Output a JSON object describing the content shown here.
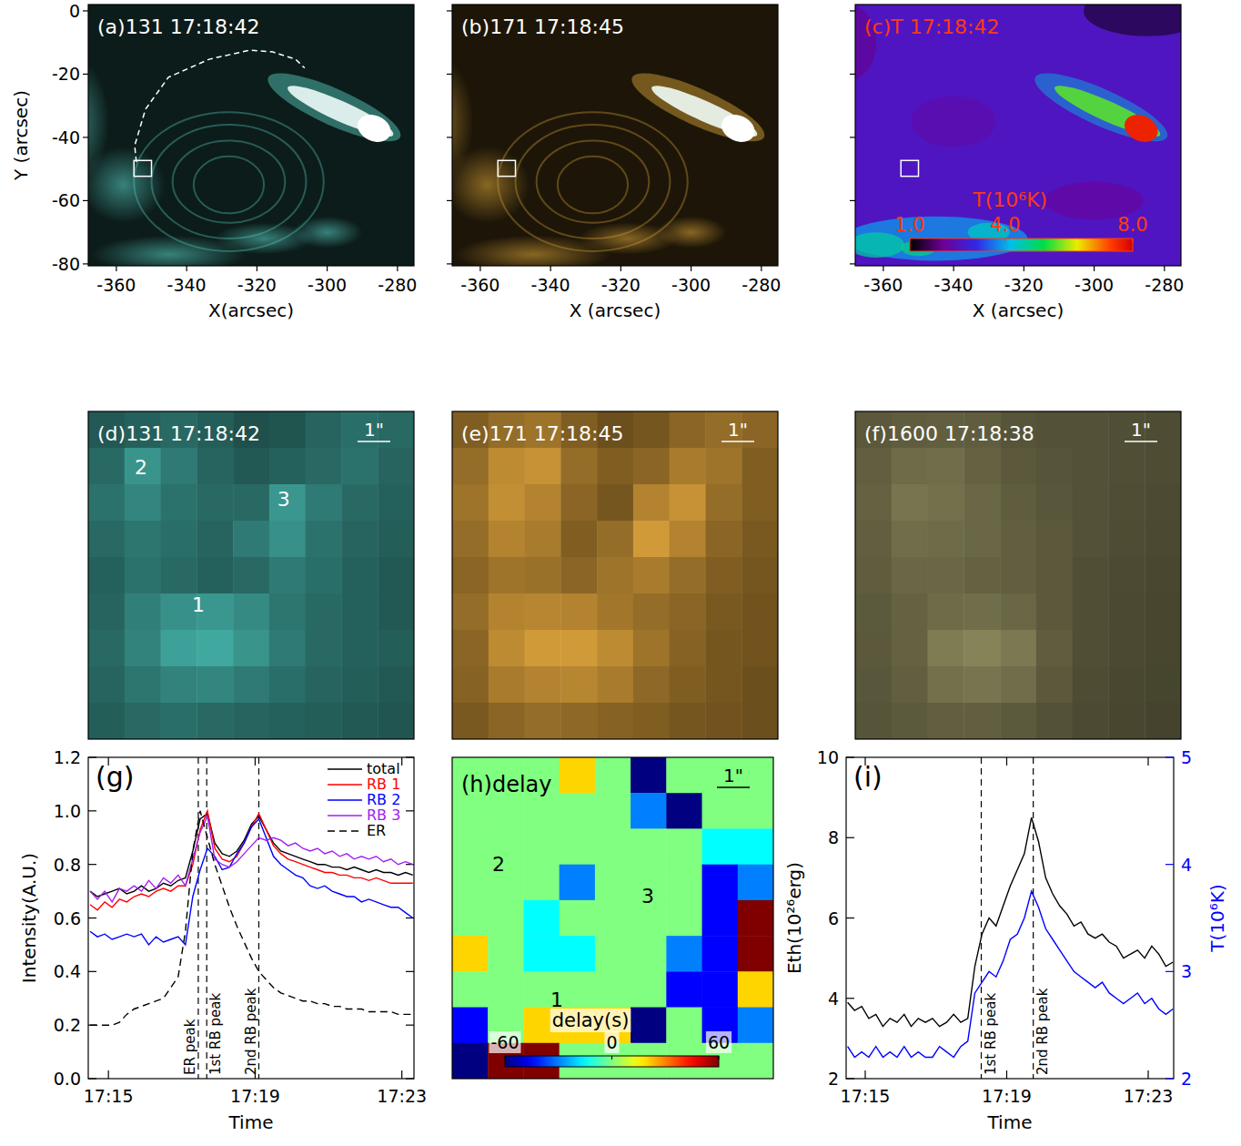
{
  "chart_data": [
    {
      "type": "image",
      "title": "(a)131 17:18:42",
      "color": "#5cd4c8",
      "xlim": [
        -368,
        -275.3
      ],
      "ylim": [
        -80.6,
        2
      ],
      "xticks": [
        -360,
        -340,
        -320,
        -300,
        -280
      ],
      "yticks": [
        0,
        -20,
        -40,
        -60,
        -80
      ],
      "xlabel": "X(arcsec)",
      "ylabel": "Y (arcsec)",
      "box": {
        "x": [
          -355,
          -350
        ],
        "y": [
          -52.3,
          -47.3
        ]
      },
      "path": {
        "x": [
          -354.3,
          -354.8,
          -351.7,
          -345.2,
          -333.6,
          -321.9,
          -315.5,
          -309,
          -306.4
        ],
        "y": [
          -47.8,
          -42.6,
          -31.1,
          -21,
          -15.3,
          -12.4,
          -13,
          -15.3,
          -18.1
        ]
      }
    },
    {
      "type": "image",
      "title": "(b)171 17:18:45",
      "color": "#e0a83a",
      "xlim": [
        -368,
        -275.3
      ],
      "ylim": [
        -80.6,
        2
      ],
      "xticks": [
        -360,
        -340,
        -320,
        -300,
        -280
      ],
      "yticks": [
        0,
        -20,
        -40,
        -60,
        -80
      ],
      "tick_labels": "x",
      "xlabel": "X (arcsec)",
      "box": {
        "x": [
          -355,
          -350
        ],
        "y": [
          -52.3,
          -47.3
        ]
      }
    },
    {
      "type": "image",
      "title": "(c)T 17:18:42",
      "xlim": [
        -368,
        -275.3
      ],
      "ylim": [
        -80.6,
        2
      ],
      "xticks": [
        -360,
        -340,
        -320,
        -300,
        -280
      ],
      "yticks": [
        0,
        -20,
        -40,
        -60,
        -80
      ],
      "tick_labels": "x",
      "xlabel": "X (arcsec)",
      "box": {
        "x": [
          -355,
          -350
        ],
        "y": [
          -52.3,
          -47.3
        ]
      },
      "colorbar": {
        "title": "T(10⁶K)",
        "range": [
          1,
          8
        ],
        "ticks": [
          {
            "value": 1,
            "label": "1.0"
          },
          {
            "value": 4,
            "label": "4.0"
          },
          {
            "value": 8,
            "label": "8.0"
          }
        ]
      }
    },
    {
      "type": "heatmap",
      "title": "(d)131 17:18:42",
      "color": "#4cc6bc",
      "tick_labels": false,
      "scale_label": "1\"",
      "cells": [
        [
          0.35,
          0.4,
          0.45,
          0.38,
          0.3,
          0.32,
          0.42,
          0.48,
          0.45
        ],
        [
          0.45,
          0.7,
          0.55,
          0.42,
          0.35,
          0.4,
          0.45,
          0.5,
          0.42
        ],
        [
          0.5,
          0.62,
          0.5,
          0.45,
          0.45,
          0.72,
          0.55,
          0.45,
          0.4
        ],
        [
          0.45,
          0.52,
          0.48,
          0.42,
          0.55,
          0.68,
          0.5,
          0.42,
          0.38
        ],
        [
          0.4,
          0.5,
          0.45,
          0.4,
          0.45,
          0.55,
          0.48,
          0.4,
          0.35
        ],
        [
          0.42,
          0.58,
          0.68,
          0.72,
          0.65,
          0.52,
          0.45,
          0.4,
          0.35
        ],
        [
          0.45,
          0.6,
          0.78,
          0.82,
          0.7,
          0.55,
          0.45,
          0.4,
          0.38
        ],
        [
          0.42,
          0.52,
          0.6,
          0.62,
          0.55,
          0.48,
          0.42,
          0.38,
          0.35
        ],
        [
          0.38,
          0.45,
          0.48,
          0.45,
          0.42,
          0.4,
          0.38,
          0.35,
          0.33
        ]
      ],
      "labels": [
        {
          "text": "2",
          "col": 1.46,
          "row": 1.53
        },
        {
          "text": "3",
          "col": 5.4,
          "row": 2.4
        },
        {
          "text": "1",
          "col": 3.04,
          "row": 5.3
        }
      ]
    },
    {
      "type": "heatmap",
      "title": "(e)171 17:18:45",
      "color": "#f0b040",
      "tick_labels": false,
      "scale_label": "1\"",
      "cells": [
        [
          0.45,
          0.55,
          0.6,
          0.45,
          0.35,
          0.4,
          0.5,
          0.55,
          0.5
        ],
        [
          0.55,
          0.75,
          0.8,
          0.55,
          0.45,
          0.5,
          0.65,
          0.6,
          0.45
        ],
        [
          0.6,
          0.78,
          0.7,
          0.5,
          0.4,
          0.7,
          0.8,
          0.55,
          0.45
        ],
        [
          0.55,
          0.7,
          0.65,
          0.45,
          0.55,
          0.85,
          0.7,
          0.5,
          0.42
        ],
        [
          0.5,
          0.6,
          0.58,
          0.5,
          0.6,
          0.65,
          0.55,
          0.45,
          0.4
        ],
        [
          0.55,
          0.7,
          0.72,
          0.7,
          0.62,
          0.55,
          0.5,
          0.42,
          0.38
        ],
        [
          0.5,
          0.75,
          0.85,
          0.85,
          0.75,
          0.6,
          0.48,
          0.4,
          0.38
        ],
        [
          0.48,
          0.65,
          0.7,
          0.72,
          0.65,
          0.52,
          0.45,
          0.4,
          0.35
        ],
        [
          0.42,
          0.5,
          0.55,
          0.52,
          0.48,
          0.45,
          0.4,
          0.38,
          0.35
        ]
      ]
    },
    {
      "type": "heatmap",
      "title": "(f)1600 17:18:38",
      "color": "#aaa670",
      "tick_labels": false,
      "scale_label": "1\"",
      "cells": [
        [
          0.45,
          0.48,
          0.5,
          0.48,
          0.42,
          0.4,
          0.4,
          0.38,
          0.36
        ],
        [
          0.5,
          0.58,
          0.6,
          0.52,
          0.45,
          0.42,
          0.4,
          0.38,
          0.36
        ],
        [
          0.52,
          0.65,
          0.62,
          0.55,
          0.48,
          0.44,
          0.4,
          0.37,
          0.35
        ],
        [
          0.5,
          0.6,
          0.58,
          0.55,
          0.5,
          0.45,
          0.4,
          0.36,
          0.34
        ],
        [
          0.48,
          0.55,
          0.55,
          0.52,
          0.5,
          0.45,
          0.38,
          0.35,
          0.33
        ],
        [
          0.46,
          0.52,
          0.58,
          0.6,
          0.55,
          0.45,
          0.38,
          0.34,
          0.32
        ],
        [
          0.45,
          0.52,
          0.7,
          0.75,
          0.68,
          0.48,
          0.38,
          0.34,
          0.32
        ],
        [
          0.44,
          0.5,
          0.62,
          0.65,
          0.6,
          0.45,
          0.36,
          0.33,
          0.31
        ],
        [
          0.42,
          0.46,
          0.5,
          0.5,
          0.46,
          0.4,
          0.35,
          0.32,
          0.3
        ]
      ]
    },
    {
      "type": "line",
      "title": "(g)",
      "xlabel": "Time",
      "ylabel": "Intensity(A.U.)",
      "legend": "upper right",
      "xlim": [
        14.45,
        23.33
      ],
      "ylim": [
        0,
        1.2
      ],
      "xticks": [
        {
          "value": 15,
          "label": "17:15"
        },
        {
          "value": 19,
          "label": "17:19"
        },
        {
          "value": 23,
          "label": "17:23"
        }
      ],
      "yticks": [
        {
          "value": 0,
          "label": "0.0"
        },
        {
          "value": 0.2,
          "label": "0.2"
        },
        {
          "value": 0.4,
          "label": "0.4"
        },
        {
          "value": 0.6,
          "label": "0.6"
        },
        {
          "value": 0.8,
          "label": "0.8"
        },
        {
          "value": 1.0,
          "label": "1.0"
        },
        {
          "value": 1.2,
          "label": "1.2"
        }
      ],
      "x": [
        14.5,
        14.7,
        14.9,
        15.1,
        15.3,
        15.5,
        15.7,
        15.9,
        16.1,
        16.3,
        16.5,
        16.7,
        16.9,
        17.1,
        17.3,
        17.5,
        17.7,
        17.9,
        18.1,
        18.3,
        18.5,
        18.7,
        18.9,
        19.1,
        19.3,
        19.5,
        19.7,
        19.9,
        20.1,
        20.3,
        20.5,
        20.7,
        20.9,
        21.1,
        21.3,
        21.5,
        21.7,
        21.9,
        22.1,
        22.3,
        22.5,
        22.7,
        22.9,
        23.1,
        23.3
      ],
      "series": [
        {
          "name": "total",
          "color": "#000000",
          "values": [
            0.7,
            0.68,
            0.69,
            0.7,
            0.71,
            0.69,
            0.7,
            0.72,
            0.7,
            0.71,
            0.73,
            0.72,
            0.74,
            0.75,
            0.85,
            0.97,
            0.99,
            0.88,
            0.84,
            0.83,
            0.85,
            0.89,
            0.95,
            0.98,
            0.93,
            0.88,
            0.85,
            0.84,
            0.83,
            0.82,
            0.81,
            0.8,
            0.8,
            0.79,
            0.79,
            0.78,
            0.79,
            0.78,
            0.77,
            0.78,
            0.77,
            0.77,
            0.76,
            0.77,
            0.76
          ]
        },
        {
          "name": "RB 1",
          "color": "#ff0000",
          "values": [
            0.65,
            0.63,
            0.66,
            0.64,
            0.67,
            0.66,
            0.68,
            0.69,
            0.68,
            0.7,
            0.71,
            0.7,
            0.72,
            0.72,
            0.8,
            0.93,
            1.0,
            0.86,
            0.82,
            0.81,
            0.83,
            0.88,
            0.94,
            0.99,
            0.93,
            0.87,
            0.84,
            0.82,
            0.81,
            0.8,
            0.79,
            0.78,
            0.77,
            0.77,
            0.76,
            0.76,
            0.75,
            0.75,
            0.74,
            0.75,
            0.74,
            0.73,
            0.73,
            0.73,
            0.73
          ]
        },
        {
          "name": "RB 2",
          "color": "#0000ff",
          "values": [
            0.55,
            0.53,
            0.54,
            0.52,
            0.53,
            0.54,
            0.53,
            0.54,
            0.5,
            0.53,
            0.51,
            0.52,
            0.53,
            0.5,
            0.68,
            0.78,
            0.86,
            0.83,
            0.78,
            0.79,
            0.84,
            0.88,
            0.94,
            0.97,
            0.9,
            0.83,
            0.8,
            0.78,
            0.76,
            0.75,
            0.72,
            0.71,
            0.72,
            0.7,
            0.69,
            0.68,
            0.68,
            0.66,
            0.67,
            0.66,
            0.65,
            0.64,
            0.64,
            0.62,
            0.6
          ]
        },
        {
          "name": "RB 3",
          "color": "#a020f0",
          "values": [
            0.7,
            0.67,
            0.7,
            0.66,
            0.71,
            0.7,
            0.72,
            0.7,
            0.74,
            0.71,
            0.75,
            0.73,
            0.76,
            0.72,
            0.82,
            0.92,
            0.98,
            0.82,
            0.8,
            0.79,
            0.81,
            0.84,
            0.87,
            0.9,
            0.89,
            0.9,
            0.89,
            0.87,
            0.88,
            0.86,
            0.85,
            0.86,
            0.84,
            0.85,
            0.83,
            0.84,
            0.82,
            0.83,
            0.82,
            0.83,
            0.81,
            0.82,
            0.8,
            0.81,
            0.8
          ]
        },
        {
          "name": "ER",
          "color": "#000000",
          "line_style": "dashed",
          "values": [
            0.2,
            0.2,
            0.2,
            0.2,
            0.21,
            0.24,
            0.26,
            0.27,
            0.28,
            0.29,
            0.3,
            0.34,
            0.38,
            0.55,
            0.85,
            1.0,
            0.9,
            0.8,
            0.72,
            0.64,
            0.57,
            0.51,
            0.45,
            0.4,
            0.37,
            0.34,
            0.32,
            0.31,
            0.3,
            0.29,
            0.29,
            0.28,
            0.28,
            0.27,
            0.27,
            0.26,
            0.26,
            0.26,
            0.25,
            0.25,
            0.25,
            0.25,
            0.24,
            0.24,
            0.24
          ]
        }
      ],
      "markers": [
        {
          "x": 17.45,
          "label": "ER peak",
          "side": "left"
        },
        {
          "x": 17.68,
          "label": "1st RB peak",
          "side": "right"
        },
        {
          "x": 19.1,
          "label": "2nd RB peak",
          "side": "left"
        }
      ]
    },
    {
      "type": "heatmap",
      "title": "(h)delay",
      "tick_labels": false,
      "scale_label": "1\"",
      "cells": [
        [
          0,
          0,
          0,
          20,
          0,
          -60,
          0,
          0,
          0
        ],
        [
          0,
          0,
          0,
          0,
          0,
          -30,
          -60,
          0,
          0
        ],
        [
          0,
          0,
          0,
          0,
          0,
          0,
          0,
          -15,
          -15
        ],
        [
          0,
          0,
          0,
          -30,
          0,
          0,
          0,
          -45,
          -30
        ],
        [
          0,
          0,
          -15,
          0,
          0,
          0,
          0,
          -45,
          60
        ],
        [
          20,
          0,
          -15,
          -15,
          0,
          0,
          -30,
          -45,
          60
        ],
        [
          0,
          0,
          0,
          0,
          0,
          0,
          -45,
          -45,
          20
        ],
        [
          -45,
          0,
          20,
          20,
          20,
          -60,
          0,
          -45,
          -30
        ],
        [
          -60,
          60,
          60,
          0,
          0,
          0,
          0,
          0,
          0
        ]
      ],
      "labels": [
        {
          "text": "2",
          "col": 1.3,
          "row": 3.0
        },
        {
          "text": "3",
          "col": 5.48,
          "row": 3.9
        },
        {
          "text": "1",
          "col": 2.93,
          "row": 6.8
        }
      ],
      "colorbar": {
        "title": "delay(s)",
        "range": [
          -60,
          60
        ],
        "ticks": [
          -60,
          0,
          60
        ]
      }
    },
    {
      "type": "line",
      "title": "(i)",
      "xlabel": "Time",
      "ylabel": "Eth(10²⁶erg)",
      "y2label": "T(10⁶K)",
      "xlim": [
        14.46,
        23.72
      ],
      "ylim": [
        2,
        10
      ],
      "y2lim": [
        2,
        5
      ],
      "xticks": [
        {
          "value": 15,
          "label": "17:15"
        },
        {
          "value": 19,
          "label": "17:19"
        },
        {
          "value": 23,
          "label": "17:23"
        }
      ],
      "yticks": [
        2,
        4,
        6,
        8,
        10
      ],
      "y2ticks": [
        2,
        3,
        4,
        5
      ],
      "x": [
        14.5,
        14.7,
        14.9,
        15.1,
        15.3,
        15.5,
        15.7,
        15.9,
        16.1,
        16.3,
        16.5,
        16.7,
        16.9,
        17.1,
        17.3,
        17.5,
        17.7,
        17.9,
        18.1,
        18.3,
        18.5,
        18.7,
        18.9,
        19.1,
        19.3,
        19.5,
        19.7,
        19.9,
        20.1,
        20.3,
        20.5,
        20.7,
        20.9,
        21.1,
        21.3,
        21.5,
        21.7,
        21.9,
        22.1,
        22.3,
        22.5,
        22.7,
        22.9,
        23.1,
        23.3,
        23.5,
        23.7
      ],
      "series": [
        {
          "color": "#000000",
          "values": [
            3.9,
            3.7,
            3.8,
            3.5,
            3.6,
            3.3,
            3.5,
            3.4,
            3.6,
            3.3,
            3.5,
            3.4,
            3.5,
            3.3,
            3.4,
            3.6,
            3.4,
            3.5,
            4.8,
            5.6,
            6.0,
            5.8,
            6.3,
            6.8,
            7.2,
            7.6,
            8.5,
            7.9,
            7.0,
            6.6,
            6.3,
            6.1,
            5.8,
            5.9,
            5.6,
            5.5,
            5.6,
            5.4,
            5.3,
            5.0,
            5.1,
            5.2,
            5.0,
            5.3,
            5.1,
            4.8,
            4.9
          ]
        },
        {
          "color": "#0000ff",
          "axis": "y2",
          "values": [
            2.3,
            2.2,
            2.25,
            2.2,
            2.3,
            2.2,
            2.25,
            2.2,
            2.3,
            2.2,
            2.25,
            2.2,
            2.2,
            2.3,
            2.25,
            2.2,
            2.3,
            2.35,
            2.8,
            2.9,
            3.0,
            2.95,
            3.1,
            3.3,
            3.35,
            3.5,
            3.75,
            3.6,
            3.4,
            3.3,
            3.2,
            3.1,
            3.0,
            2.95,
            2.9,
            2.85,
            2.9,
            2.8,
            2.75,
            2.7,
            2.75,
            2.8,
            2.7,
            2.75,
            2.65,
            2.6,
            2.65
          ]
        }
      ],
      "markers": [
        {
          "x": 18.28,
          "label": "1st RB peak",
          "side": "right"
        },
        {
          "x": 19.75,
          "label": "2nd RB peak",
          "side": "right"
        }
      ]
    }
  ]
}
